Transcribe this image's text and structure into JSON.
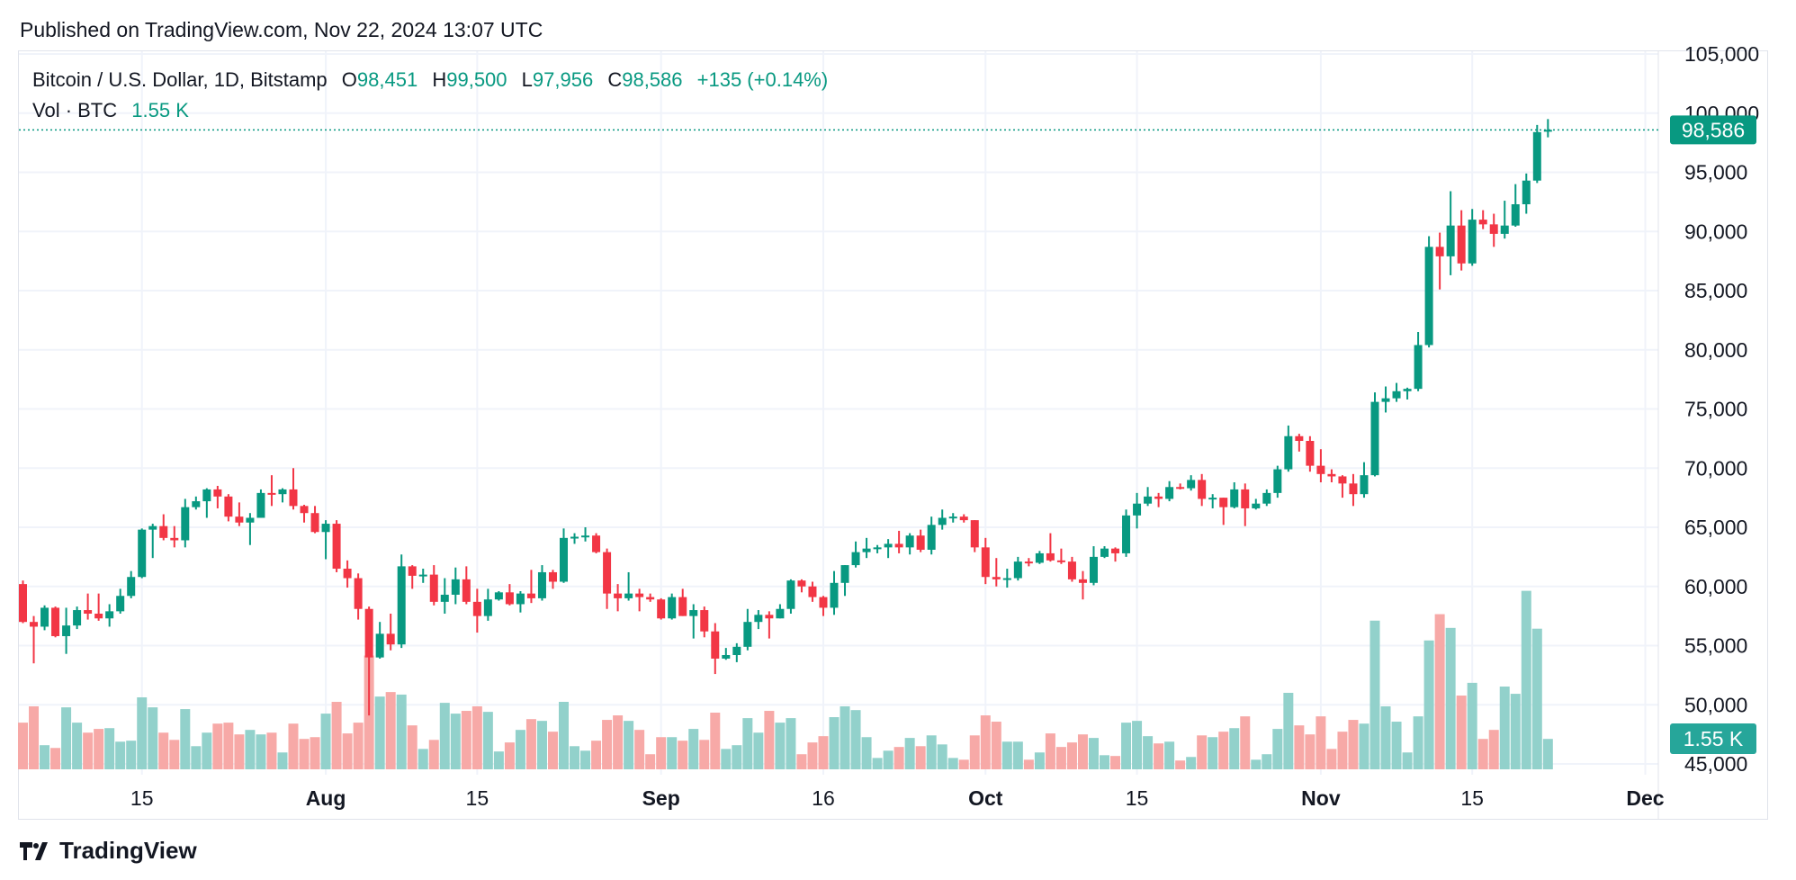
{
  "published": "Published on TradingView.com, Nov 22, 2024 13:07 UTC",
  "legend": {
    "symbol": "Bitcoin / U.S. Dollar, 1D, Bitstamp",
    "o_label": "O",
    "o": "98,451",
    "h_label": "H",
    "h": "99,500",
    "l_label": "L",
    "l": "97,956",
    "c_label": "C",
    "c": "98,586",
    "change": "+135 (+0.14%)",
    "vol_label": "Vol · BTC",
    "vol": "1.55 K"
  },
  "logo": "TradingView",
  "colors": {
    "up": "#089981",
    "down": "#f23645",
    "vol_up": "#92d1cb",
    "vol_down": "#f7a9a7",
    "grid": "#f0f3fa",
    "price_label": "#089981",
    "vol_label_bg": "#26a69a"
  },
  "chart_data": {
    "type": "candlestick",
    "title": "Bitcoin / U.S. Dollar, 1D, Bitstamp",
    "ylim": [
      45000,
      105000
    ],
    "y_ticks": [
      "105,000",
      "100,000",
      "95,000",
      "90,000",
      "85,000",
      "80,000",
      "75,000",
      "70,000",
      "65,000",
      "60,000",
      "55,000",
      "50,000",
      "45,000"
    ],
    "y_tick_values": [
      105000,
      100000,
      95000,
      90000,
      85000,
      80000,
      75000,
      70000,
      65000,
      60000,
      55000,
      50000,
      45000
    ],
    "x_ticks": [
      {
        "label": "15",
        "date": "2024-07-15",
        "bold": false
      },
      {
        "label": "Aug",
        "date": "2024-08-01",
        "bold": true
      },
      {
        "label": "15",
        "date": "2024-08-15",
        "bold": false
      },
      {
        "label": "Sep",
        "date": "2024-09-01",
        "bold": true
      },
      {
        "label": "16",
        "date": "2024-09-16",
        "bold": false
      },
      {
        "label": "Oct",
        "date": "2024-10-01",
        "bold": true
      },
      {
        "label": "15",
        "date": "2024-10-15",
        "bold": false
      },
      {
        "label": "Nov",
        "date": "2024-11-01",
        "bold": true
      },
      {
        "label": "15",
        "date": "2024-11-15",
        "bold": false
      },
      {
        "label": "Dec",
        "date": "2024-12-01",
        "bold": true
      }
    ],
    "last_price_label": "98,586",
    "last_price": 98586,
    "last_volume_label": "1.55 K",
    "grid": true,
    "columns": [
      "date",
      "open",
      "high",
      "low",
      "close",
      "volume_k"
    ],
    "candles": [
      [
        "2024-07-04",
        60200,
        60500,
        56900,
        57000,
        2.38
      ],
      [
        "2024-07-05",
        57000,
        57500,
        53500,
        56600,
        3.21
      ],
      [
        "2024-07-06",
        56600,
        58400,
        56300,
        58200,
        1.23
      ],
      [
        "2024-07-07",
        58200,
        58300,
        55700,
        55800,
        1.09
      ],
      [
        "2024-07-08",
        55800,
        58200,
        54300,
        56700,
        3.16
      ],
      [
        "2024-07-09",
        56700,
        58300,
        56400,
        58000,
        2.38
      ],
      [
        "2024-07-10",
        58000,
        59400,
        57200,
        57700,
        1.87
      ],
      [
        "2024-07-11",
        57700,
        59400,
        57100,
        57300,
        2.06
      ],
      [
        "2024-07-12",
        57300,
        58500,
        56600,
        57900,
        2.1
      ],
      [
        "2024-07-13",
        57900,
        59800,
        57700,
        59200,
        1.41
      ],
      [
        "2024-07-14",
        59200,
        61300,
        59000,
        60800,
        1.46
      ],
      [
        "2024-07-15",
        60800,
        64900,
        60700,
        64800,
        3.67
      ],
      [
        "2024-07-16",
        64800,
        65300,
        62400,
        65100,
        3.16
      ],
      [
        "2024-07-17",
        65100,
        66100,
        63900,
        64100,
        1.87
      ],
      [
        "2024-07-18",
        64100,
        65100,
        63300,
        63900,
        1.5
      ],
      [
        "2024-07-19",
        63900,
        67400,
        63300,
        66700,
        3.07
      ],
      [
        "2024-07-20",
        66700,
        67600,
        66500,
        67200,
        1.18
      ],
      [
        "2024-07-21",
        67200,
        68300,
        65800,
        68200,
        1.87
      ],
      [
        "2024-07-22",
        68200,
        68500,
        66600,
        67600,
        2.33
      ],
      [
        "2024-07-23",
        67600,
        67800,
        65500,
        65900,
        2.38
      ],
      [
        "2024-07-24",
        65900,
        67100,
        65100,
        65400,
        1.78
      ],
      [
        "2024-07-25",
        65400,
        66200,
        63500,
        65800,
        2.01
      ],
      [
        "2024-07-26",
        65800,
        68200,
        65800,
        67900,
        1.78
      ],
      [
        "2024-07-27",
        67900,
        69400,
        66800,
        67800,
        1.87
      ],
      [
        "2024-07-28",
        67800,
        68300,
        67100,
        68200,
        0.86
      ],
      [
        "2024-07-29",
        68200,
        70000,
        66500,
        66800,
        2.33
      ],
      [
        "2024-07-30",
        66800,
        66900,
        65400,
        66200,
        1.55
      ],
      [
        "2024-07-31",
        66200,
        66800,
        64500,
        64600,
        1.64
      ],
      [
        "2024-08-01",
        64600,
        65600,
        62300,
        65300,
        2.84
      ],
      [
        "2024-08-02",
        65300,
        65600,
        61200,
        61500,
        3.44
      ],
      [
        "2024-08-03",
        61500,
        62200,
        59900,
        60700,
        1.83
      ],
      [
        "2024-08-04",
        60700,
        61100,
        57200,
        58100,
        2.38
      ],
      [
        "2024-08-05",
        58100,
        58300,
        49100,
        54000,
        5.8
      ],
      [
        "2024-08-06",
        54000,
        57000,
        53900,
        56000,
        3.71
      ],
      [
        "2024-08-07",
        56000,
        57700,
        54600,
        55100,
        3.94
      ],
      [
        "2024-08-08",
        55100,
        62700,
        54800,
        61700,
        3.81
      ],
      [
        "2024-08-09",
        61700,
        61800,
        59800,
        60900,
        2.24
      ],
      [
        "2024-08-10",
        60900,
        61500,
        60300,
        61000,
        1.04
      ],
      [
        "2024-08-11",
        61000,
        61800,
        58400,
        58700,
        1.5
      ],
      [
        "2024-08-12",
        58700,
        60700,
        57700,
        59300,
        3.39
      ],
      [
        "2024-08-13",
        59300,
        61600,
        58500,
        60600,
        2.84
      ],
      [
        "2024-08-14",
        60600,
        61700,
        58500,
        58700,
        2.98
      ],
      [
        "2024-08-15",
        58700,
        59800,
        56100,
        57500,
        3.21
      ],
      [
        "2024-08-16",
        57500,
        59800,
        57100,
        58900,
        2.93
      ],
      [
        "2024-08-17",
        58900,
        59600,
        58800,
        59500,
        0.91
      ],
      [
        "2024-08-18",
        59500,
        60200,
        58400,
        58500,
        1.37
      ],
      [
        "2024-08-19",
        58500,
        59600,
        57800,
        59400,
        2.01
      ],
      [
        "2024-08-20",
        59400,
        61400,
        58600,
        59000,
        2.56
      ],
      [
        "2024-08-21",
        59000,
        61800,
        58800,
        61200,
        2.47
      ],
      [
        "2024-08-22",
        61200,
        61400,
        59800,
        60400,
        1.92
      ],
      [
        "2024-08-23",
        60400,
        64900,
        60300,
        64100,
        3.44
      ],
      [
        "2024-08-24",
        64100,
        64500,
        63600,
        64200,
        1.18
      ],
      [
        "2024-08-25",
        64200,
        65000,
        63800,
        64300,
        0.95
      ],
      [
        "2024-08-26",
        64300,
        64500,
        62800,
        62900,
        1.46
      ],
      [
        "2024-08-27",
        62900,
        63200,
        58100,
        59400,
        2.52
      ],
      [
        "2024-08-28",
        59400,
        60200,
        57900,
        59000,
        2.75
      ],
      [
        "2024-08-29",
        59000,
        61200,
        58800,
        59400,
        2.47
      ],
      [
        "2024-08-30",
        59400,
        59800,
        57900,
        59100,
        2.01
      ],
      [
        "2024-08-31",
        59100,
        59400,
        58700,
        58900,
        0.77
      ],
      [
        "2024-09-01",
        58900,
        59000,
        57200,
        57300,
        1.64
      ],
      [
        "2024-09-02",
        57300,
        59400,
        57200,
        59100,
        1.64
      ],
      [
        "2024-09-03",
        59100,
        59800,
        57500,
        57500,
        1.46
      ],
      [
        "2024-09-04",
        57500,
        58500,
        55600,
        58000,
        2.06
      ],
      [
        "2024-09-05",
        58000,
        58300,
        55700,
        56200,
        1.5
      ],
      [
        "2024-09-06",
        56200,
        56900,
        52600,
        53900,
        2.89
      ],
      [
        "2024-09-07",
        53900,
        54800,
        53800,
        54200,
        1.04
      ],
      [
        "2024-09-08",
        54200,
        55200,
        53600,
        54900,
        1.23
      ],
      [
        "2024-09-09",
        54900,
        58100,
        54600,
        57000,
        2.61
      ],
      [
        "2024-09-10",
        57000,
        58000,
        56400,
        57600,
        1.87
      ],
      [
        "2024-09-11",
        57600,
        57900,
        55600,
        57300,
        2.98
      ],
      [
        "2024-09-12",
        57300,
        58500,
        57300,
        58100,
        2.38
      ],
      [
        "2024-09-13",
        58100,
        60600,
        57700,
        60500,
        2.61
      ],
      [
        "2024-09-14",
        60500,
        60600,
        59500,
        60000,
        0.77
      ],
      [
        "2024-09-15",
        60000,
        60400,
        58700,
        59100,
        1.37
      ],
      [
        "2024-09-16",
        59100,
        59200,
        57500,
        58200,
        1.69
      ],
      [
        "2024-09-17",
        58200,
        61300,
        57600,
        60300,
        2.66
      ],
      [
        "2024-09-18",
        60300,
        61800,
        59200,
        61800,
        3.21
      ],
      [
        "2024-09-19",
        61800,
        63800,
        61600,
        62900,
        3.02
      ],
      [
        "2024-09-20",
        62900,
        64100,
        62400,
        63200,
        1.64
      ],
      [
        "2024-09-21",
        63200,
        63500,
        62800,
        63300,
        0.58
      ],
      [
        "2024-09-22",
        63300,
        64000,
        62400,
        63600,
        0.95
      ],
      [
        "2024-09-23",
        63600,
        64700,
        62800,
        63300,
        1.14
      ],
      [
        "2024-09-24",
        63300,
        64500,
        62700,
        64300,
        1.6
      ],
      [
        "2024-09-25",
        64300,
        64800,
        62900,
        63100,
        1.18
      ],
      [
        "2024-09-26",
        63100,
        65900,
        62700,
        65200,
        1.73
      ],
      [
        "2024-09-27",
        65200,
        66500,
        64800,
        65800,
        1.27
      ],
      [
        "2024-09-28",
        65800,
        66200,
        65400,
        65900,
        0.58
      ],
      [
        "2024-09-29",
        65900,
        66100,
        65400,
        65600,
        0.49
      ],
      [
        "2024-09-30",
        65600,
        65600,
        62900,
        63300,
        1.73
      ],
      [
        "2024-10-01",
        63300,
        64100,
        60200,
        60800,
        2.75
      ],
      [
        "2024-10-02",
        60800,
        62400,
        60000,
        60600,
        2.43
      ],
      [
        "2024-10-03",
        60600,
        61500,
        59900,
        60700,
        1.41
      ],
      [
        "2024-10-04",
        60700,
        62500,
        60500,
        62100,
        1.41
      ],
      [
        "2024-10-05",
        62100,
        62400,
        61700,
        62000,
        0.49
      ],
      [
        "2024-10-06",
        62000,
        63000,
        61900,
        62800,
        0.86
      ],
      [
        "2024-10-07",
        62800,
        64500,
        62100,
        62200,
        1.83
      ],
      [
        "2024-10-08",
        62200,
        63200,
        61900,
        62100,
        1.14
      ],
      [
        "2024-10-09",
        62100,
        62500,
        60400,
        60600,
        1.37
      ],
      [
        "2024-10-10",
        60600,
        61300,
        58900,
        60300,
        1.78
      ],
      [
        "2024-10-11",
        60300,
        63400,
        60100,
        62500,
        1.6
      ],
      [
        "2024-10-12",
        62500,
        63400,
        62400,
        63200,
        0.72
      ],
      [
        "2024-10-13",
        63200,
        63300,
        62100,
        62800,
        0.68
      ],
      [
        "2024-10-14",
        62800,
        66500,
        62500,
        66000,
        2.38
      ],
      [
        "2024-10-15",
        66000,
        67900,
        64900,
        67000,
        2.47
      ],
      [
        "2024-10-16",
        67000,
        68400,
        66800,
        67600,
        1.69
      ],
      [
        "2024-10-17",
        67600,
        67900,
        66700,
        67400,
        1.32
      ],
      [
        "2024-10-18",
        67400,
        68900,
        67200,
        68400,
        1.41
      ],
      [
        "2024-10-19",
        68400,
        68700,
        68200,
        68300,
        0.45
      ],
      [
        "2024-10-20",
        68300,
        69400,
        68100,
        69000,
        0.63
      ],
      [
        "2024-10-21",
        69000,
        69500,
        66800,
        67400,
        1.73
      ],
      [
        "2024-10-22",
        67400,
        67800,
        66600,
        67500,
        1.64
      ],
      [
        "2024-10-23",
        67500,
        67500,
        65200,
        66700,
        1.92
      ],
      [
        "2024-10-24",
        66700,
        68800,
        66600,
        68200,
        2.1
      ],
      [
        "2024-10-25",
        68200,
        68700,
        65100,
        66600,
        2.7
      ],
      [
        "2024-10-26",
        66600,
        67400,
        66500,
        67000,
        0.49
      ],
      [
        "2024-10-27",
        67000,
        68200,
        66800,
        67900,
        0.77
      ],
      [
        "2024-10-28",
        67900,
        70200,
        67500,
        69900,
        2.06
      ],
      [
        "2024-10-29",
        69900,
        73600,
        69700,
        72700,
        3.9
      ],
      [
        "2024-10-30",
        72700,
        72900,
        71400,
        72300,
        2.24
      ],
      [
        "2024-10-31",
        72300,
        72700,
        69700,
        70200,
        1.78
      ],
      [
        "2024-11-01",
        70200,
        71600,
        68800,
        69500,
        2.7
      ],
      [
        "2024-11-02",
        69500,
        69900,
        68800,
        69300,
        1.04
      ],
      [
        "2024-11-03",
        69300,
        69400,
        67500,
        68700,
        1.92
      ],
      [
        "2024-11-04",
        68700,
        69500,
        66800,
        67800,
        2.52
      ],
      [
        "2024-11-05",
        67800,
        70500,
        67500,
        69400,
        2.33
      ],
      [
        "2024-11-06",
        69400,
        76400,
        69300,
        75600,
        7.58
      ],
      [
        "2024-11-07",
        75600,
        76900,
        74700,
        75900,
        3.21
      ],
      [
        "2024-11-08",
        75900,
        77200,
        75600,
        76500,
        2.43
      ],
      [
        "2024-11-09",
        76500,
        76800,
        75800,
        76700,
        0.86
      ],
      [
        "2024-11-10",
        76700,
        81500,
        76500,
        80400,
        2.7
      ],
      [
        "2024-11-11",
        80400,
        89600,
        80200,
        88700,
        6.57
      ],
      [
        "2024-11-12",
        88700,
        89900,
        85100,
        87900,
        7.91
      ],
      [
        "2024-11-13",
        87900,
        93400,
        86300,
        90500,
        7.21
      ],
      [
        "2024-11-14",
        90500,
        91800,
        86700,
        87300,
        3.76
      ],
      [
        "2024-11-15",
        87300,
        91900,
        87100,
        91000,
        4.41
      ],
      [
        "2024-11-16",
        91000,
        91800,
        90200,
        90600,
        1.55
      ],
      [
        "2024-11-17",
        90600,
        91500,
        88700,
        89800,
        2.01
      ],
      [
        "2024-11-18",
        89800,
        92600,
        89400,
        90500,
        4.22
      ],
      [
        "2024-11-19",
        90500,
        94000,
        90400,
        92300,
        3.85
      ],
      [
        "2024-11-20",
        92300,
        94900,
        91500,
        94300,
        9.1
      ],
      [
        "2024-11-21",
        94300,
        99000,
        94100,
        98400,
        7.17
      ],
      [
        "2024-11-22",
        98451,
        99500,
        97956,
        98586,
        1.55
      ]
    ]
  }
}
